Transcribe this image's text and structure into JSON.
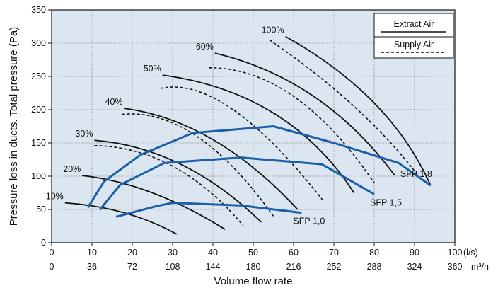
{
  "chart_data": {
    "type": "line",
    "title": "",
    "xlabel": "Volume flow rate",
    "ylabel": "Pressure loss in ducts. Total pressure (Pa)",
    "xlim": [
      0,
      100
    ],
    "ylim": [
      0,
      350
    ],
    "grid": true,
    "x_ticks": [
      0,
      10,
      20,
      30,
      40,
      50,
      60,
      70,
      80,
      90,
      100
    ],
    "x_tick_labels": [
      "0",
      "10",
      "20",
      "30",
      "40",
      "50",
      "60",
      "70",
      "80",
      "90",
      "100"
    ],
    "x_unit": "(l/s)",
    "x2_tick_labels": [
      "0",
      "36",
      "72",
      "108",
      "144",
      "180",
      "216",
      "252",
      "288",
      "324",
      "360"
    ],
    "x2_unit": "m³/h",
    "y_ticks": [
      0,
      50,
      100,
      150,
      200,
      250,
      300,
      350
    ],
    "y_tick_labels": [
      "0",
      "50",
      "100",
      "150",
      "200",
      "250",
      "300",
      "350"
    ],
    "legend": {
      "placement": "top-right",
      "entries": [
        {
          "label": "Extract Air",
          "style": "solid"
        },
        {
          "label": "Supply Air",
          "style": "dashed"
        }
      ]
    },
    "fan_curves": [
      {
        "label": "10%",
        "extract": [
          [
            3.3,
            60
          ],
          [
            18,
            45
          ],
          [
            31,
            13
          ]
        ],
        "supply": null
      },
      {
        "label": "20%",
        "extract": [
          [
            7.6,
            101
          ],
          [
            25,
            75
          ],
          [
            43,
            20
          ]
        ],
        "supply": null
      },
      {
        "label": "30%",
        "extract": [
          [
            10.6,
            154
          ],
          [
            32,
            118
          ],
          [
            52,
            31
          ]
        ],
        "supply": [
          [
            10.6,
            146
          ],
          [
            30,
            115
          ],
          [
            47.5,
            26
          ]
        ]
      },
      {
        "label": "40%",
        "extract": [
          [
            18,
            202
          ],
          [
            40,
            155
          ],
          [
            61,
            50
          ]
        ],
        "supply": [
          [
            17.5,
            193
          ],
          [
            36,
            160
          ],
          [
            55,
            40
          ]
        ]
      },
      {
        "label": "50%",
        "extract": [
          [
            27.5,
            252
          ],
          [
            55,
            195
          ],
          [
            75,
            75
          ]
        ],
        "supply": [
          [
            27,
            232
          ],
          [
            45,
            200
          ],
          [
            67.5,
            62
          ]
        ]
      },
      {
        "label": "60%",
        "extract": [
          [
            40.5,
            285
          ],
          [
            65,
            220
          ],
          [
            85,
            102
          ]
        ],
        "supply": [
          [
            39,
            263
          ],
          [
            60,
            220
          ],
          [
            80,
            90
          ]
        ]
      },
      {
        "label": "100%",
        "extract": [
          [
            58,
            310
          ],
          [
            80,
            210
          ],
          [
            94,
            86
          ]
        ],
        "supply": [
          [
            54,
            305
          ],
          [
            75,
            205
          ],
          [
            91,
            100
          ]
        ]
      }
    ],
    "sfp_curves": [
      {
        "label": "SFP 1,0",
        "color": "#1a5fa8",
        "points": [
          [
            16,
            39
          ],
          [
            26,
            55
          ],
          [
            30,
            60
          ],
          [
            47,
            56
          ],
          [
            62,
            45
          ]
        ]
      },
      {
        "label": "SFP 1,5",
        "color": "#1a5fa8",
        "points": [
          [
            12,
            50
          ],
          [
            17,
            87
          ],
          [
            28,
            120
          ],
          [
            47,
            128
          ],
          [
            67,
            118
          ],
          [
            80,
            73
          ]
        ]
      },
      {
        "label": "SFP 1,8",
        "color": "#1a5fa8",
        "points": [
          [
            9,
            53
          ],
          [
            13,
            92
          ],
          [
            22,
            132
          ],
          [
            35,
            165
          ],
          [
            55,
            175
          ],
          [
            70,
            150
          ],
          [
            86,
            120
          ],
          [
            94,
            86
          ]
        ]
      }
    ]
  }
}
